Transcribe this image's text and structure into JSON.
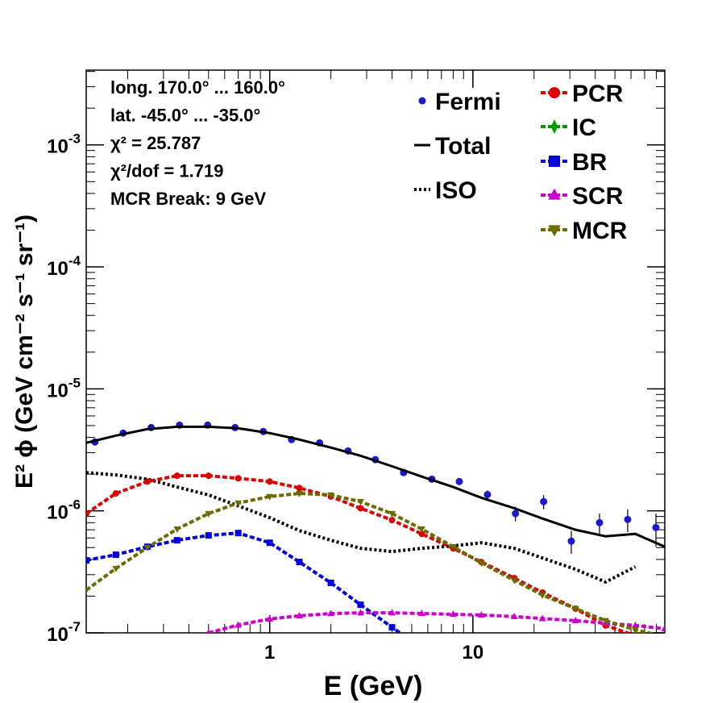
{
  "chart_data": {
    "type": "line",
    "log_x": true,
    "log_y": true,
    "xlabel": "E (GeV)",
    "ylabel": "E² ϕ (GeV cm⁻² s⁻¹ sr⁻¹)",
    "annotations": [
      "long. 170.0° ... 160.0°",
      "lat. -45.0° ... -35.0°",
      "χ² = 25.787",
      "χ²/dof = 1.719",
      "MCR Break:  9 GeV"
    ],
    "xlim": [
      0.125,
      88
    ],
    "ylim": [
      1e-07,
      0.0041
    ],
    "xticks": [
      1,
      10
    ],
    "yticks": [
      {
        "value": 1e-07,
        "label": "10",
        "exponent": "-7"
      },
      {
        "value": 1e-06,
        "label": "10",
        "exponent": "-6"
      },
      {
        "value": 1e-05,
        "label": "10",
        "exponent": "-5"
      },
      {
        "value": 0.0001,
        "label": "10",
        "exponent": "-4"
      },
      {
        "value": 0.001,
        "label": "10",
        "exponent": "-3"
      }
    ],
    "x": [
      0.125,
      0.175,
      0.25,
      0.35,
      0.5,
      0.7,
      1,
      1.4,
      2,
      2.8,
      4,
      5.6,
      8,
      11,
      16,
      22,
      32,
      45,
      63,
      88
    ],
    "series": [
      {
        "name": "Fermi",
        "color": "#1a1acc",
        "style": "points",
        "x": [
          0.138,
          0.19,
          0.261,
          0.36,
          0.495,
          0.675,
          0.93,
          1.28,
          1.76,
          2.43,
          3.31,
          4.56,
          6.28,
          8.57,
          11.8,
          16.2,
          22.3,
          30.5,
          42.0,
          57.8,
          79.6
        ],
        "values": [
          3.67e-06,
          4.34e-06,
          4.82e-06,
          5.05e-06,
          5.05e-06,
          4.82e-06,
          4.47e-06,
          3.84e-06,
          3.61e-06,
          3.1e-06,
          2.63e-06,
          2.06e-06,
          1.82e-06,
          1.74e-06,
          1.36e-06,
          9.5e-07,
          1.19e-06,
          5.65e-07,
          8e-07,
          8.5e-07,
          7.3e-07
        ],
        "errors": [
          1e-07,
          1e-07,
          1e-07,
          1e-07,
          1e-07,
          1e-07,
          1e-07,
          1e-07,
          1e-07,
          1e-07,
          1e-07,
          1e-07,
          1e-07,
          1.1e-07,
          1.1e-07,
          1.3e-07,
          1.6e-07,
          1.2e-07,
          1.5e-07,
          1.8e-07,
          2.2e-07
        ]
      },
      {
        "name": "Total",
        "color": "#000000",
        "style": "solid",
        "values": [
          3.61e-06,
          4.14e-06,
          4.68e-06,
          4.89e-06,
          4.89e-06,
          4.75e-06,
          4.34e-06,
          3.84e-06,
          3.3e-06,
          2.83e-06,
          2.32e-06,
          1.91e-06,
          1.57e-06,
          1.28e-06,
          1.05e-06,
          8.65e-07,
          7e-07,
          6.19e-07,
          6.48e-07,
          5.08e-07
        ]
      },
      {
        "name": "ISO",
        "color": "#000000",
        "style": "dotted",
        "values": [
          2.06e-06,
          1.97e-06,
          1.82e-06,
          1.57e-06,
          1.35e-06,
          1.1e-06,
          8.79e-07,
          6.89e-07,
          5.74e-07,
          4.93e-07,
          4.64e-07,
          4.93e-07,
          5.16e-07,
          5.48e-07,
          4.93e-07,
          4.11e-07,
          3.32e-07,
          2.61e-07,
          3.48e-07,
          null
        ]
      },
      {
        "name": "PCR",
        "color": "#dd0000",
        "style": "dashed",
        "marker": "circle",
        "values": [
          9.5e-07,
          1.39e-06,
          1.74e-06,
          1.94e-06,
          1.94e-06,
          1.85e-06,
          1.74e-06,
          1.54e-06,
          1.31e-06,
          1.05e-06,
          8.4e-07,
          6.48e-07,
          4.93e-07,
          3.81e-07,
          2.81e-07,
          2.14e-07,
          1.58e-07,
          1.15e-07,
          9.5e-08,
          7e-08
        ]
      },
      {
        "name": "IC",
        "color": "#009900",
        "style": "dashed",
        "marker": "diamond",
        "values": [
          null,
          null,
          null,
          null,
          null,
          null,
          null,
          null,
          null,
          null,
          null,
          null,
          null,
          null,
          null,
          null,
          null,
          null,
          null,
          null
        ]
      },
      {
        "name": "BR",
        "color": "#0000dd",
        "style": "dashed",
        "marker": "square",
        "values": [
          3.93e-07,
          4.37e-07,
          5.08e-07,
          5.74e-07,
          6.29e-07,
          6.58e-07,
          5.48e-07,
          3.81e-07,
          2.57e-07,
          1.7e-07,
          1.11e-07,
          7.5e-08,
          null,
          null,
          null,
          null,
          null,
          null,
          null,
          null
        ]
      },
      {
        "name": "SCR",
        "color": "#cc00cc",
        "style": "dashed",
        "marker": "triangle-up",
        "values": [
          null,
          null,
          null,
          null,
          1e-07,
          1.16e-07,
          1.3e-07,
          1.38e-07,
          1.44e-07,
          1.46e-07,
          1.46e-07,
          1.44e-07,
          1.42e-07,
          1.4e-07,
          1.36e-07,
          1.31e-07,
          1.26e-07,
          1.2e-07,
          1.15e-07,
          1.08e-07
        ]
      },
      {
        "name": "MCR",
        "color": "#6b6b00",
        "style": "dashed",
        "marker": "triangle-down",
        "values": [
          2.24e-07,
          3.37e-07,
          5.01e-07,
          7.1e-07,
          9.5e-07,
          1.16e-06,
          1.31e-06,
          1.39e-06,
          1.35e-06,
          1.19e-06,
          9.5e-07,
          7.1e-07,
          5.08e-07,
          3.75e-07,
          2.69e-07,
          2.04e-07,
          1.58e-07,
          1.26e-07,
          1.06e-07,
          9.3e-08
        ]
      }
    ]
  }
}
